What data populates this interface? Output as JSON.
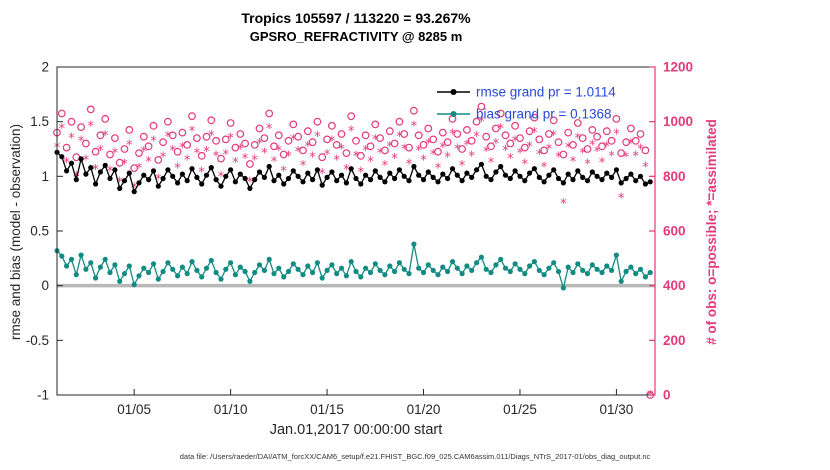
{
  "title": {
    "line1": "Tropics 105597 / 113220 = 93.267%",
    "line2": "GPSRO_REFRACTIVITY @ 8285 m"
  },
  "footer": {
    "data_file": "data file: /Users/raeder/DAI/ATM_forcXX/CAM6_setup/f.e21.FHIST_BGC.f09_025.CAM6assim.011/Diags_NTrS_2017-01/obs_diag_output.nc"
  },
  "colors": {
    "pink": "#e33a7a",
    "teal": "#128c82",
    "black": "#000000",
    "legend_text": "#2948d8",
    "zero_line": "#b8b8b8",
    "axis": "#262626"
  },
  "chart_data": {
    "type": "line",
    "title": "Tropics 105597 / 113220 = 93.267% | GPSRO_REFRACTIVITY @ 8285 m",
    "xlabel": "Jan.01,2017 00:00:00 start",
    "ylabel_left": "rmse and bias (model - observation)",
    "ylabel_right": "# of obs: o=possible; *=assimilated",
    "xlim": [
      1,
      32
    ],
    "ylim_left": [
      -1,
      2
    ],
    "ylim_right": [
      0,
      1200
    ],
    "x_start_day": 1.0,
    "x_step_days": 0.25,
    "grid": false,
    "legend_position": "top-right-inside",
    "xticks": [
      {
        "value": 5,
        "label": "01/05"
      },
      {
        "value": 10,
        "label": "01/10"
      },
      {
        "value": 15,
        "label": "01/15"
      },
      {
        "value": 20,
        "label": "01/20"
      },
      {
        "value": 25,
        "label": "01/25"
      },
      {
        "value": 30,
        "label": "01/30"
      }
    ],
    "yticks_left": [
      {
        "value": -1,
        "label": "-1"
      },
      {
        "value": -0.5,
        "label": "-0.5"
      },
      {
        "value": 0,
        "label": "0"
      },
      {
        "value": 0.5,
        "label": "0.5"
      },
      {
        "value": 1,
        "label": "1"
      },
      {
        "value": 1.5,
        "label": "1.5"
      },
      {
        "value": 2,
        "label": "2"
      }
    ],
    "yticks_right": [
      {
        "value": 0,
        "label": "0"
      },
      {
        "value": 200,
        "label": "200"
      },
      {
        "value": 400,
        "label": "400"
      },
      {
        "value": 600,
        "label": "600"
      },
      {
        "value": 800,
        "label": "800"
      },
      {
        "value": 1000,
        "label": "1000"
      },
      {
        "value": 1200,
        "label": "1200"
      }
    ],
    "legend": [
      {
        "label": "rmse grand pr = 1.0114",
        "color": "#000000"
      },
      {
        "label": "bias grand pr = 0.1368",
        "color": "#128c82"
      }
    ],
    "zero_line": {
      "value": 0,
      "color": "#b8b8b8"
    },
    "series": [
      {
        "name": "possible",
        "axis": "right",
        "marker": "circle",
        "color": "#e33a7a",
        "values": [
          960,
          1030,
          905,
          1000,
          870,
          980,
          920,
          1045,
          890,
          950,
          1010,
          880,
          940,
          850,
          900,
          970,
          830,
          885,
          945,
          910,
          985,
          860,
          925,
          1000,
          950,
          890,
          960,
          915,
          1020,
          940,
          875,
          945,
          1005,
          930,
          865,
          935,
          995,
          905,
          955,
          920,
          845,
          915,
          975,
          940,
          1030,
          910,
          950,
          880,
          930,
          990,
          945,
          895,
          965,
          925,
          1000,
          870,
          935,
          985,
          915,
          955,
          885,
          1020,
          930,
          875,
          950,
          910,
          990,
          940,
          895,
          965,
          920,
          1000,
          955,
          905,
          1040,
          950,
          915,
          975,
          935,
          890,
          960,
          925,
          1010,
          955,
          900,
          970,
          930,
          1000,
          1055,
          945,
          910,
          975,
          1030,
          950,
          920,
          985,
          940,
          905,
          965,
          1015,
          935,
          895,
          955,
          1005,
          925,
          880,
          960,
          915,
          995,
          940,
          900,
          970,
          945,
          910,
          965,
          930,
          1010,
          885,
          925,
          975,
          930,
          955,
          895,
          0
        ]
      },
      {
        "name": "assimilated",
        "axis": "right",
        "marker": "asterisk",
        "color": "#e33a7a",
        "values": [
          905,
          975,
          850,
          940,
          800,
          930,
          860,
          985,
          825,
          895,
          950,
          820,
          885,
          780,
          845,
          915,
          760,
          830,
          890,
          855,
          930,
          790,
          870,
          945,
          895,
          830,
          905,
          860,
          965,
          885,
          815,
          890,
          950,
          875,
          800,
          880,
          940,
          850,
          900,
          865,
          780,
          860,
          920,
          885,
          975,
          855,
          895,
          820,
          875,
          935,
          890,
          840,
          910,
          870,
          945,
          810,
          880,
          930,
          860,
          900,
          825,
          965,
          875,
          815,
          895,
          855,
          935,
          885,
          840,
          910,
          865,
          945,
          900,
          845,
          985,
          895,
          860,
          920,
          880,
          830,
          905,
          870,
          955,
          900,
          840,
          915,
          875,
          945,
          1000,
          890,
          850,
          920,
          975,
          895,
          865,
          930,
          885,
          845,
          910,
          960,
          880,
          835,
          900,
          950,
          870,
          700,
          905,
          855,
          940,
          885,
          845,
          915,
          890,
          850,
          910,
          875,
          955,
          720,
          870,
          920,
          875,
          900,
          835,
          0
        ]
      },
      {
        "name": "bias",
        "axis": "left",
        "marker": "dot",
        "color": "#128c82",
        "values": [
          0.32,
          0.27,
          0.18,
          0.24,
          0.1,
          0.28,
          0.15,
          0.21,
          0.07,
          0.17,
          0.24,
          0.12,
          0.19,
          0.04,
          0.11,
          0.18,
          0.01,
          0.09,
          0.16,
          0.12,
          0.2,
          0.06,
          0.13,
          0.21,
          0.15,
          0.09,
          0.17,
          0.11,
          0.22,
          0.14,
          0.08,
          0.16,
          0.23,
          0.12,
          0.06,
          0.15,
          0.21,
          0.1,
          0.17,
          0.13,
          0.04,
          0.12,
          0.19,
          0.14,
          0.24,
          0.11,
          0.16,
          0.08,
          0.13,
          0.2,
          0.15,
          0.1,
          0.18,
          0.12,
          0.21,
          0.07,
          0.14,
          0.19,
          0.11,
          0.16,
          0.09,
          0.22,
          0.13,
          0.08,
          0.16,
          0.12,
          0.2,
          0.14,
          0.1,
          0.18,
          0.13,
          0.21,
          0.15,
          0.11,
          0.38,
          0.16,
          0.12,
          0.19,
          0.14,
          0.1,
          0.17,
          0.13,
          0.22,
          0.16,
          0.11,
          0.18,
          0.14,
          0.21,
          0.26,
          0.15,
          0.12,
          0.19,
          0.24,
          0.16,
          0.13,
          0.2,
          0.15,
          0.11,
          0.18,
          0.22,
          0.14,
          0.1,
          0.16,
          0.21,
          0.13,
          -0.02,
          0.17,
          0.12,
          0.2,
          0.14,
          0.11,
          0.19,
          0.15,
          0.12,
          0.18,
          0.14,
          0.28,
          0.04,
          0.13,
          0.17,
          0.11,
          0.15,
          0.08,
          0.12
        ]
      },
      {
        "name": "rmse",
        "axis": "left",
        "marker": "dot",
        "color": "#000000",
        "values": [
          1.22,
          1.18,
          1.05,
          1.12,
          0.97,
          1.16,
          1.02,
          1.08,
          0.93,
          1.04,
          1.1,
          0.98,
          1.06,
          0.89,
          0.96,
          1.03,
          0.86,
          0.94,
          1.01,
          0.97,
          1.05,
          0.91,
          0.98,
          1.06,
          1.0,
          0.94,
          1.02,
          0.96,
          1.07,
          0.99,
          0.93,
          1.01,
          1.08,
          0.97,
          0.91,
          1.0,
          1.06,
          0.95,
          1.02,
          0.98,
          0.89,
          0.97,
          1.04,
          0.99,
          1.09,
          0.96,
          1.01,
          0.93,
          0.98,
          1.05,
          1.0,
          0.95,
          1.03,
          0.97,
          1.06,
          0.92,
          0.99,
          1.04,
          0.96,
          1.01,
          0.94,
          1.07,
          0.98,
          0.93,
          1.01,
          0.97,
          1.05,
          0.99,
          0.95,
          1.03,
          0.98,
          1.06,
          1.0,
          0.96,
          1.09,
          1.01,
          0.97,
          1.04,
          0.99,
          0.95,
          1.02,
          0.98,
          1.07,
          1.01,
          0.96,
          1.03,
          0.99,
          1.06,
          1.11,
          1.0,
          0.97,
          1.04,
          1.09,
          1.01,
          0.98,
          1.05,
          1.0,
          0.96,
          1.03,
          1.07,
          0.99,
          0.95,
          1.01,
          1.06,
          0.98,
          0.94,
          1.02,
          0.97,
          1.05,
          0.99,
          0.96,
          1.04,
          1.0,
          0.97,
          1.03,
          0.99,
          1.06,
          0.94,
          0.98,
          1.02,
          0.96,
          1.0,
          0.93,
          0.95
        ]
      }
    ]
  }
}
